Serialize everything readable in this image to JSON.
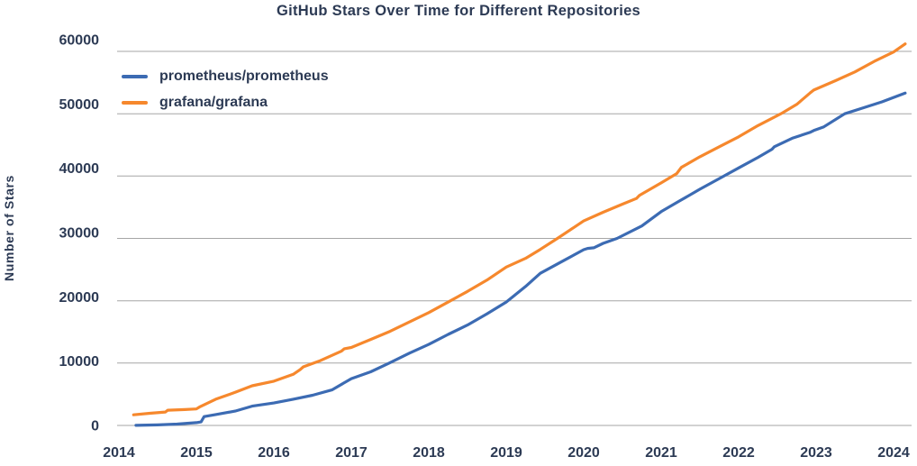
{
  "title": "GitHub Stars Over Time for Different Repositories",
  "colors": {
    "text": "#2c3a54",
    "grid": "#a6a6a6",
    "background": "#ffffff",
    "prometheus_line": "#3c6bb3",
    "grafana_line": "#f6882d"
  },
  "chart_data": {
    "type": "line",
    "title": "GitHub Stars Over Time for Different Repositories",
    "xlabel": "",
    "ylabel": "Number of Stars",
    "x_ticks": [
      2014,
      2015,
      2016,
      2017,
      2018,
      2019,
      2020,
      2021,
      2022,
      2023,
      2024
    ],
    "y_ticks": [
      0,
      10000,
      20000,
      30000,
      40000,
      50000,
      60000
    ],
    "xlim": [
      2013.85,
      2024.3
    ],
    "ylim": [
      0,
      62500
    ],
    "grid": "horizontal-only",
    "legend_position": "upper-left",
    "series": [
      {
        "name": "prometheus/prometheus",
        "color": "#3c6bb3",
        "points": [
          [
            2014.22,
            20
          ],
          [
            2014.5,
            90
          ],
          [
            2014.75,
            220
          ],
          [
            2015.0,
            450
          ],
          [
            2015.06,
            560
          ],
          [
            2015.1,
            1420
          ],
          [
            2015.25,
            1750
          ],
          [
            2015.5,
            2300
          ],
          [
            2015.72,
            3100
          ],
          [
            2016.0,
            3600
          ],
          [
            2016.25,
            4200
          ],
          [
            2016.5,
            4850
          ],
          [
            2016.75,
            5700
          ],
          [
            2017.0,
            7500
          ],
          [
            2017.25,
            8600
          ],
          [
            2017.49,
            10000
          ],
          [
            2017.75,
            11600
          ],
          [
            2018.0,
            13000
          ],
          [
            2018.25,
            14600
          ],
          [
            2018.5,
            16100
          ],
          [
            2018.75,
            17900
          ],
          [
            2019.0,
            19800
          ],
          [
            2019.25,
            22300
          ],
          [
            2019.44,
            24400
          ],
          [
            2019.75,
            26500
          ],
          [
            2020.0,
            28200
          ],
          [
            2020.05,
            28400
          ],
          [
            2020.13,
            28500
          ],
          [
            2020.25,
            29200
          ],
          [
            2020.43,
            30000
          ],
          [
            2020.75,
            32000
          ],
          [
            2021.0,
            34300
          ],
          [
            2021.25,
            36100
          ],
          [
            2021.5,
            37900
          ],
          [
            2021.75,
            39600
          ],
          [
            2022.0,
            41300
          ],
          [
            2022.25,
            43000
          ],
          [
            2022.43,
            44300
          ],
          [
            2022.46,
            44700
          ],
          [
            2022.7,
            46100
          ],
          [
            2022.92,
            47000
          ],
          [
            2022.97,
            47300
          ],
          [
            2023.1,
            47900
          ],
          [
            2023.37,
            50000
          ],
          [
            2023.6,
            50900
          ],
          [
            2023.85,
            51900
          ],
          [
            2024.15,
            53300
          ]
        ]
      },
      {
        "name": "grafana/grafana",
        "color": "#f6882d",
        "points": [
          [
            2014.19,
            1700
          ],
          [
            2014.4,
            1950
          ],
          [
            2014.6,
            2150
          ],
          [
            2014.63,
            2450
          ],
          [
            2014.85,
            2550
          ],
          [
            2015.0,
            2650
          ],
          [
            2015.04,
            2950
          ],
          [
            2015.25,
            4200
          ],
          [
            2015.5,
            5300
          ],
          [
            2015.72,
            6360
          ],
          [
            2016.0,
            7100
          ],
          [
            2016.25,
            8200
          ],
          [
            2016.34,
            8950
          ],
          [
            2016.38,
            9400
          ],
          [
            2016.6,
            10400
          ],
          [
            2016.87,
            11900
          ],
          [
            2016.91,
            12300
          ],
          [
            2017.0,
            12500
          ],
          [
            2017.25,
            13800
          ],
          [
            2017.5,
            15100
          ],
          [
            2017.75,
            16600
          ],
          [
            2018.0,
            18100
          ],
          [
            2018.28,
            20000
          ],
          [
            2018.5,
            21500
          ],
          [
            2018.75,
            23300
          ],
          [
            2019.0,
            25400
          ],
          [
            2019.25,
            26800
          ],
          [
            2019.44,
            28240
          ],
          [
            2019.66,
            30000
          ],
          [
            2020.0,
            32800
          ],
          [
            2020.25,
            34200
          ],
          [
            2020.5,
            35500
          ],
          [
            2020.68,
            36400
          ],
          [
            2020.72,
            36900
          ],
          [
            2021.0,
            38900
          ],
          [
            2021.2,
            40400
          ],
          [
            2021.26,
            41400
          ],
          [
            2021.5,
            43100
          ],
          [
            2021.75,
            44700
          ],
          [
            2022.0,
            46300
          ],
          [
            2022.25,
            48100
          ],
          [
            2022.5,
            49700
          ],
          [
            2022.56,
            50100
          ],
          [
            2022.75,
            51500
          ],
          [
            2022.92,
            53300
          ],
          [
            2022.97,
            53800
          ],
          [
            2023.25,
            55300
          ],
          [
            2023.5,
            56700
          ],
          [
            2023.75,
            58400
          ],
          [
            2024.0,
            59900
          ],
          [
            2024.15,
            61200
          ]
        ]
      }
    ]
  }
}
